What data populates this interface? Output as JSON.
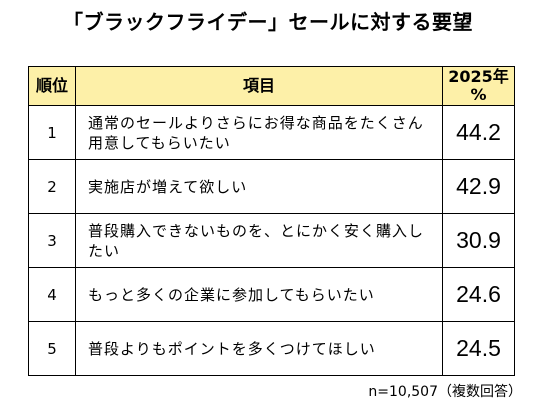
{
  "title": "「ブラックフライデー」セールに対する要望",
  "note": "n=10,507（複数回答）",
  "colors": {
    "header_bg": "#fdf0a8",
    "border": "#000000"
  },
  "chart_data": {
    "type": "table",
    "title": "「ブラックフライデー」セールに対する要望",
    "columns": [
      "順位",
      "項目",
      "2025年%"
    ],
    "header": {
      "rank": "順位",
      "item": "項目",
      "pct_line1": "2025年",
      "pct_line2": "%"
    },
    "rows": [
      {
        "rank": "1",
        "item": "通常のセールよりさらにお得な商品をたくさん用意してもらいたい",
        "value": 44.2
      },
      {
        "rank": "2",
        "item": "実施店が増えて欲しい",
        "value": 42.9
      },
      {
        "rank": "3",
        "item": "普段購入できないものを、とにかく安く購入したい",
        "value": 30.9
      },
      {
        "rank": "4",
        "item": "もっと多くの企業に参加してもらいたい",
        "value": 24.6
      },
      {
        "rank": "5",
        "item": "普段よりもポイントを多くつけてほしい",
        "value": 24.5
      }
    ],
    "values": [
      44.2,
      42.9,
      30.9,
      24.6,
      24.5
    ]
  }
}
